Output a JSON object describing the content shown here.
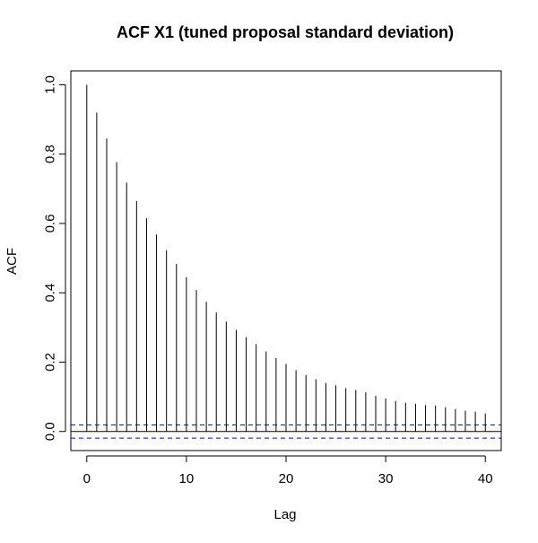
{
  "chart_data": {
    "type": "bar",
    "title": "ACF X1 (tuned proposal standard deviation)",
    "xlabel": "Lag",
    "ylabel": "ACF",
    "xlim": [
      -1.6,
      41.6
    ],
    "ylim": [
      -0.055,
      1.04
    ],
    "xticks": [
      0,
      10,
      20,
      30,
      40
    ],
    "yticks": [
      0.0,
      0.2,
      0.4,
      0.6,
      0.8,
      1.0
    ],
    "xtick_labels": [
      "0",
      "10",
      "20",
      "30",
      "40"
    ],
    "ytick_labels": [
      "0.0",
      "0.2",
      "0.4",
      "0.6",
      "0.8",
      "1.0"
    ],
    "lags": [
      0,
      1,
      2,
      3,
      4,
      5,
      6,
      7,
      8,
      9,
      10,
      11,
      12,
      13,
      14,
      15,
      16,
      17,
      18,
      19,
      20,
      21,
      22,
      23,
      24,
      25,
      26,
      27,
      28,
      29,
      30,
      31,
      32,
      33,
      34,
      35,
      36,
      37,
      38,
      39,
      40
    ],
    "values": [
      1.0,
      0.92,
      0.845,
      0.777,
      0.718,
      0.665,
      0.615,
      0.568,
      0.523,
      0.483,
      0.445,
      0.408,
      0.374,
      0.343,
      0.317,
      0.293,
      0.272,
      0.252,
      0.231,
      0.212,
      0.195,
      0.177,
      0.163,
      0.151,
      0.14,
      0.133,
      0.125,
      0.12,
      0.113,
      0.103,
      0.095,
      0.088,
      0.083,
      0.08,
      0.076,
      0.075,
      0.07,
      0.065,
      0.06,
      0.057,
      0.052
    ],
    "confidence_bound": 0.019,
    "zero_line": true,
    "grid": false,
    "colors": {
      "bars": "#000000",
      "confidence": "#0000cc",
      "axis": "#000000"
    }
  }
}
